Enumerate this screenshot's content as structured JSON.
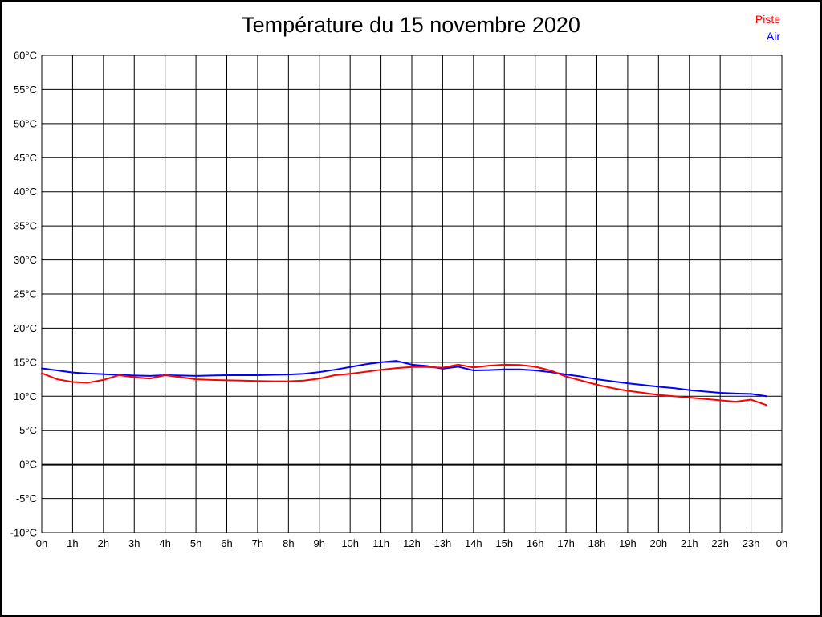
{
  "window": {
    "background_color": "#ffffff",
    "border_color": "#000000"
  },
  "header": {
    "title": "Température du 15 novembre 2020"
  },
  "legend": {
    "position": "top-right",
    "items": [
      {
        "label": "Piste",
        "color": "#ff0000"
      },
      {
        "label": "Air",
        "color": "#0000ff"
      }
    ]
  },
  "chart_data": {
    "type": "line",
    "title": "Température du 15 novembre 2020",
    "xlabel": "",
    "ylabel": "",
    "x_unit": "hours",
    "y_unit": "°C",
    "xlim": [
      0,
      24
    ],
    "ylim": [
      -10,
      60
    ],
    "y_tick_step": 5,
    "grid": true,
    "legend_position": "top-right",
    "x_tick_labels": [
      "0h",
      "1h",
      "2h",
      "3h",
      "4h",
      "5h",
      "6h",
      "7h",
      "8h",
      "9h",
      "10h",
      "11h",
      "12h",
      "13h",
      "14h",
      "15h",
      "16h",
      "17h",
      "18h",
      "19h",
      "20h",
      "21h",
      "22h",
      "23h",
      "0h"
    ],
    "y_tick_labels": [
      "60°C",
      "55°C",
      "50°C",
      "45°C",
      "40°C",
      "35°C",
      "30°C",
      "25°C",
      "20°C",
      "15°C",
      "10°C",
      "5°C",
      "0°C",
      "-5°C",
      "-10°C"
    ],
    "zero_line": {
      "value": 0,
      "color": "#000000",
      "width": 3
    },
    "x": [
      0,
      0.5,
      1,
      1.5,
      2,
      2.5,
      3,
      3.5,
      4,
      4.5,
      5,
      5.5,
      6,
      6.5,
      7,
      7.5,
      8,
      8.5,
      9,
      9.5,
      10,
      10.5,
      11,
      11.5,
      12,
      12.5,
      13,
      13.5,
      14,
      14.5,
      15,
      15.5,
      16,
      16.5,
      17,
      17.5,
      18,
      18.5,
      19,
      19.5,
      20,
      20.5,
      21,
      21.5,
      22,
      22.5,
      23,
      23.5
    ],
    "series": [
      {
        "name": "Piste",
        "color": "#ff0000",
        "values": [
          13.4,
          12.5,
          12.1,
          12.0,
          12.4,
          13.1,
          12.8,
          12.6,
          13.1,
          12.8,
          12.5,
          12.4,
          12.35,
          12.3,
          12.25,
          12.2,
          12.2,
          12.3,
          12.6,
          13.1,
          13.3,
          13.6,
          13.9,
          14.15,
          14.3,
          14.3,
          14.2,
          14.65,
          14.25,
          14.5,
          14.65,
          14.6,
          14.35,
          13.8,
          12.9,
          12.3,
          11.7,
          11.2,
          10.8,
          10.5,
          10.2,
          10.0,
          9.8,
          9.6,
          9.4,
          9.2,
          9.5,
          8.7
        ]
      },
      {
        "name": "Air",
        "color": "#0000ff",
        "values": [
          14.1,
          13.8,
          13.5,
          13.35,
          13.25,
          13.15,
          13.05,
          13.0,
          13.1,
          13.05,
          13.0,
          13.05,
          13.1,
          13.1,
          13.1,
          13.15,
          13.2,
          13.3,
          13.55,
          13.9,
          14.3,
          14.7,
          15.0,
          15.2,
          14.65,
          14.45,
          14.05,
          14.35,
          13.8,
          13.85,
          13.95,
          13.95,
          13.8,
          13.55,
          13.2,
          12.9,
          12.5,
          12.2,
          11.9,
          11.65,
          11.4,
          11.2,
          10.9,
          10.7,
          10.5,
          10.4,
          10.35,
          10.0
        ]
      }
    ]
  }
}
